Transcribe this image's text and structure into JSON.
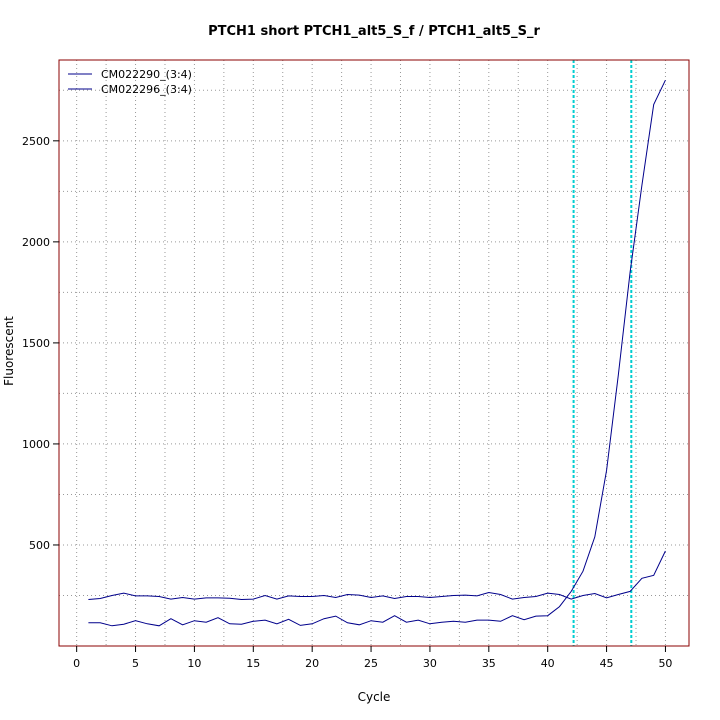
{
  "chart_data": {
    "type": "line",
    "title": "PTCH1 short PTCH1_alt5_S_f / PTCH1_alt5_S_r",
    "xlabel": "Cycle",
    "ylabel": "Fluorescent",
    "xlim": [
      -1.5,
      52
    ],
    "ylim": [
      0,
      2900
    ],
    "x_ticks": [
      0,
      5,
      10,
      15,
      20,
      25,
      30,
      35,
      40,
      45,
      50
    ],
    "y_ticks": [
      500,
      1000,
      1500,
      2000,
      2500
    ],
    "grid": true,
    "legend": "top-left",
    "threshold_cycles": [
      42.2,
      47.1
    ],
    "colors": {
      "series": "#00008b",
      "threshold": "#00ced1",
      "grid": "#999999",
      "frame": "#8b0000"
    },
    "x": [
      1,
      2,
      3,
      4,
      5,
      6,
      7,
      8,
      9,
      10,
      11,
      12,
      13,
      14,
      15,
      16,
      17,
      18,
      19,
      20,
      21,
      22,
      23,
      24,
      25,
      26,
      27,
      28,
      29,
      30,
      31,
      32,
      33,
      34,
      35,
      36,
      37,
      38,
      39,
      40,
      41,
      42,
      43,
      44,
      45,
      46,
      47,
      48,
      49,
      50
    ],
    "series": [
      {
        "name": "CM022290_(3:4)",
        "values": [
          230,
          235,
          250,
          262,
          248,
          248,
          245,
          232,
          240,
          232,
          238,
          238,
          236,
          230,
          232,
          250,
          232,
          248,
          245,
          245,
          250,
          240,
          255,
          252,
          240,
          248,
          235,
          245,
          245,
          240,
          245,
          250,
          252,
          248,
          265,
          255,
          232,
          240,
          245,
          262,
          255,
          232,
          250,
          260,
          238,
          255,
          270,
          335,
          350,
          470
        ]
      },
      {
        "name": "CM022296_(3:4)",
        "values": [
          115,
          115,
          100,
          108,
          125,
          110,
          100,
          135,
          105,
          125,
          118,
          140,
          110,
          108,
          122,
          128,
          110,
          132,
          102,
          110,
          135,
          148,
          115,
          105,
          125,
          118,
          150,
          118,
          128,
          110,
          118,
          122,
          118,
          128,
          128,
          122,
          150,
          130,
          148,
          150,
          195,
          270,
          370,
          540,
          870,
          1340,
          1850,
          2280,
          2680,
          2800
        ]
      }
    ]
  }
}
